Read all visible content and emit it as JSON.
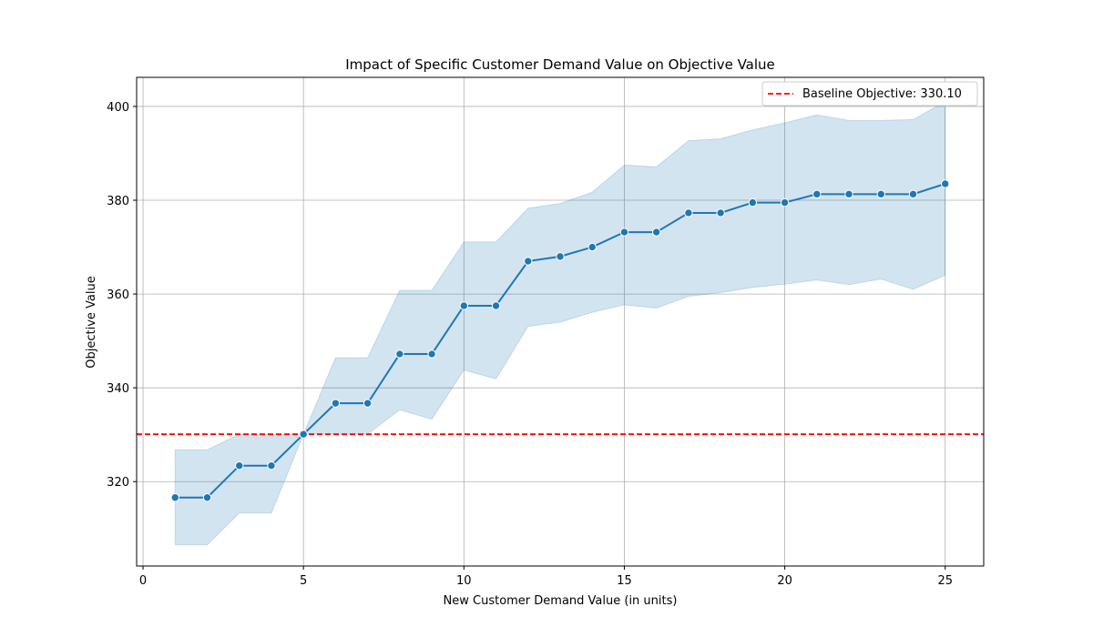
{
  "chart_data": {
    "type": "line",
    "title": "Impact of Specific Customer Demand Value on Objective Value",
    "xlabel": "New Customer Demand Value (in units)",
    "ylabel": "Objective Value",
    "xlim": [
      -0.2,
      26.2
    ],
    "ylim": [
      302.0,
      406.2
    ],
    "x_ticks": [
      0,
      5,
      10,
      15,
      20,
      25
    ],
    "y_ticks": [
      320,
      340,
      360,
      380,
      400
    ],
    "grid": true,
    "legend_position": "top-right",
    "colors": {
      "line": "#1f77b4",
      "band": "#1f77b4",
      "baseline": "#ff0000",
      "grid": "#b0b0b0"
    },
    "series": [
      {
        "x": [
          1,
          2,
          3,
          4,
          5,
          6,
          7,
          8,
          9,
          10,
          11,
          12,
          13,
          14,
          15,
          16,
          17,
          18,
          19,
          20,
          21,
          22,
          23,
          24,
          25
        ],
        "values": [
          316.6,
          316.6,
          323.4,
          323.4,
          330.1,
          336.7,
          336.7,
          347.2,
          347.2,
          357.5,
          357.5,
          367.0,
          368.0,
          370.0,
          373.2,
          373.2,
          377.3,
          377.3,
          379.5,
          379.5,
          381.3,
          381.3,
          381.3,
          381.3,
          383.5
        ],
        "lower": [
          306.5,
          306.5,
          313.3,
          313.3,
          330.1,
          330.1,
          330.1,
          335.3,
          333.3,
          343.8,
          341.9,
          353.1,
          354.0,
          356.1,
          357.7,
          357.0,
          359.5,
          360.3,
          361.4,
          362.1,
          363.0,
          362.0,
          363.2,
          361.0,
          364.0
        ],
        "upper": [
          326.8,
          326.8,
          330.1,
          330.1,
          330.1,
          346.4,
          346.4,
          360.8,
          360.8,
          371.1,
          371.1,
          378.3,
          379.3,
          381.7,
          387.5,
          387.1,
          392.7,
          393.1,
          395.0,
          396.5,
          398.2,
          397.0,
          397.0,
          397.2,
          401.0
        ]
      }
    ],
    "baseline": {
      "value": 330.1,
      "label": "Baseline Objective: 330.10"
    }
  }
}
